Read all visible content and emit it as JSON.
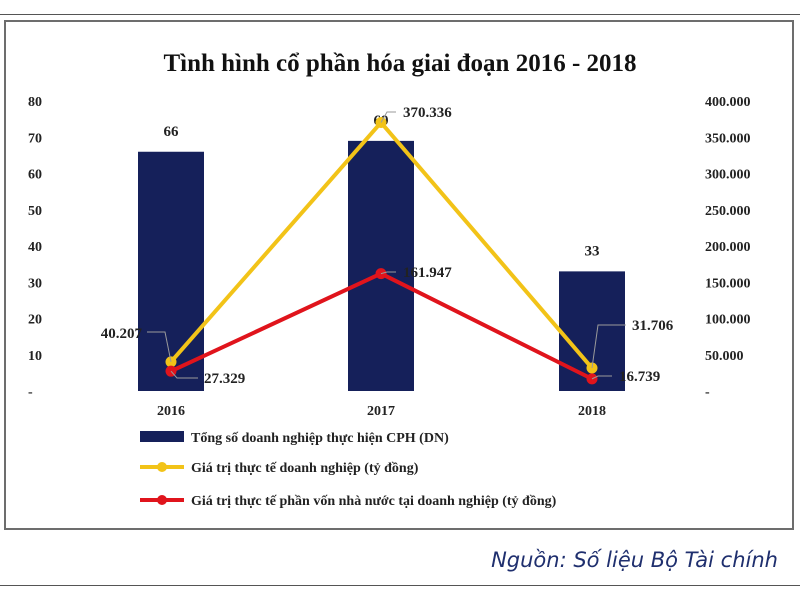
{
  "chart_data": {
    "type": "bar",
    "title": "Tình hình cổ phần hóa giai đoạn 2016 - 2018",
    "categories": [
      "2016",
      "2017",
      "2018"
    ],
    "y_left": {
      "ticks": [
        "-",
        "10",
        "20",
        "30",
        "40",
        "50",
        "60",
        "70",
        "80"
      ],
      "ylim": [
        0,
        80
      ]
    },
    "y_right": {
      "ticks": [
        "-",
        "50.000",
        "100.000",
        "150.000",
        "200.000",
        "250.000",
        "300.000",
        "350.000",
        "400.000"
      ],
      "ylim": [
        0,
        400000
      ]
    },
    "series": [
      {
        "name": "Tổng số doanh nghiệp thực hiện CPH (DN)",
        "type": "bar",
        "axis": "left",
        "values": [
          66,
          69,
          33
        ],
        "labels": [
          "66",
          "69",
          "33"
        ],
        "color": "#15205a"
      },
      {
        "name": "Giá trị thực tế doanh nghiệp (tỷ đồng)",
        "type": "line",
        "axis": "right",
        "values": [
          40207,
          370336,
          31706
        ],
        "labels": [
          "40.207",
          "370.336",
          "31.706"
        ],
        "color": "#f2c318"
      },
      {
        "name": "Giá trị thực tế phần vốn nhà nước tại doanh nghiệp (tỷ đồng)",
        "type": "line",
        "axis": "right",
        "values": [
          27329,
          161947,
          16739
        ],
        "labels": [
          "27.329",
          "161.947",
          "16.739"
        ],
        "color": "#e0141c"
      }
    ],
    "grid": false,
    "legend": "bottom"
  },
  "source": "Nguồn: Số liệu Bộ Tài chính"
}
